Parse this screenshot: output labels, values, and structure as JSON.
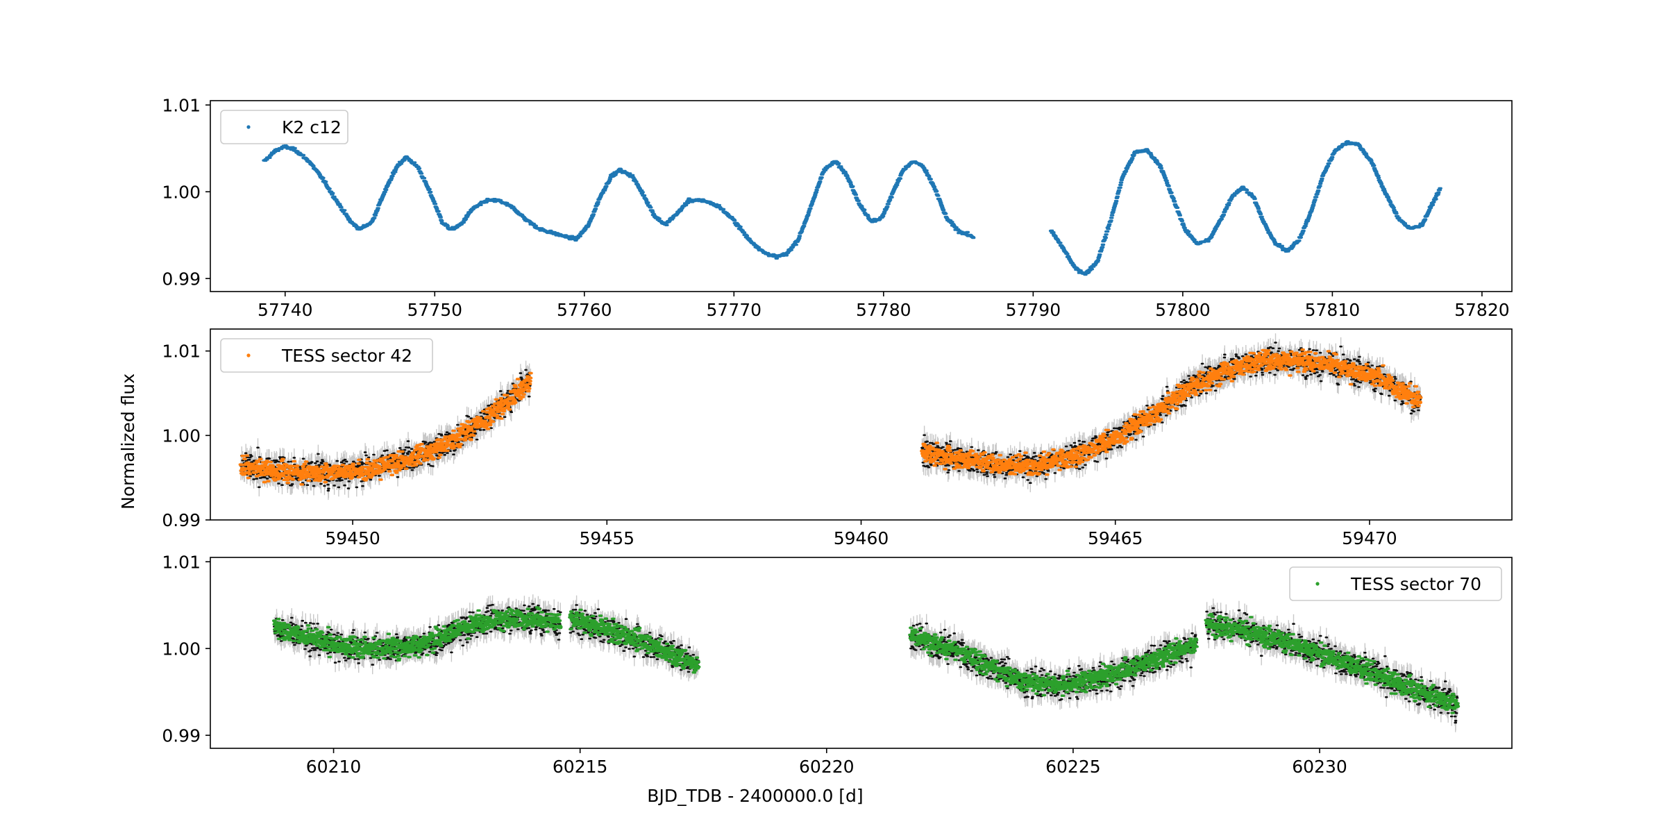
{
  "figure": {
    "xlabel": "BJD_TDB - 2400000.0 [d]",
    "ylabel": "Normalized flux"
  },
  "chart_data": [
    {
      "type": "scatter",
      "series": [
        {
          "name": "K2 c12",
          "color": "#1f77b4",
          "errorbars": false
        }
      ],
      "legend_position": "upper-left",
      "xlim": [
        57735,
        57822
      ],
      "ylim": [
        0.9885,
        1.0105
      ],
      "xticks": [
        57740,
        57750,
        57760,
        57770,
        57780,
        57790,
        57800,
        57810,
        57820
      ],
      "yticks": [
        0.99,
        1.0,
        1.01
      ],
      "ytick_labels": [
        "0.99",
        "1.00",
        "1.01"
      ],
      "segments": [
        {
          "x": [
            57738.6,
            57739.4,
            57740,
            57740.7,
            57741.6,
            57742.5,
            57743.5,
            57744.4,
            57745.0,
            57745.8,
            57746.6,
            57747.5,
            57748.1,
            57748.9,
            57749.8,
            57750.5,
            57751.1,
            57751.8,
            57752.5,
            57753.5,
            57754.3,
            57755.2,
            57756.1,
            57757.0,
            57758.0,
            57759.0,
            57759.5,
            57760.3,
            57761.0,
            57761.8,
            57762.4,
            57763.2,
            57764.0,
            57764.7,
            57765.4,
            57766.2,
            57767.0,
            57768.0,
            57769.0,
            57770.0,
            57771.0,
            57772.0,
            57772.8,
            57773.5,
            57774.3,
            57775.2,
            57776.0,
            57776.8,
            57777.6,
            57778.4,
            57779.2,
            57779.9,
            57780.6,
            57781.3,
            57782.0,
            57782.6,
            57783.4,
            57784.2,
            57785.0,
            57786.0
          ],
          "y": [
            1.0035,
            1.0048,
            1.0052,
            1.0048,
            1.0035,
            1.0015,
            0.9988,
            0.9965,
            0.9957,
            0.9965,
            0.9998,
            1.003,
            1.004,
            1.0028,
            0.9995,
            0.9965,
            0.9956,
            0.9963,
            0.998,
            0.999,
            0.999,
            0.9982,
            0.9968,
            0.9957,
            0.9952,
            0.9947,
            0.9946,
            0.9962,
            0.9992,
            1.0018,
            1.0025,
            1.0018,
            0.9995,
            0.9972,
            0.9962,
            0.9975,
            0.999,
            0.999,
            0.9983,
            0.9967,
            0.9945,
            0.993,
            0.9925,
            0.9928,
            0.9945,
            0.9985,
            1.0025,
            1.0035,
            1.0018,
            0.9985,
            0.9966,
            0.997,
            0.9998,
            1.0025,
            1.0035,
            1.003,
            1.0005,
            0.997,
            0.9955,
            0.9948
          ]
        },
        {
          "x": [
            57791.2,
            57792.0,
            57792.8,
            57793.5,
            57794.3,
            57795.2,
            57796.0,
            57796.8,
            57797.6,
            57798.5,
            57799.4,
            57800.2,
            57801.0,
            57801.8,
            57802.6,
            57803.3,
            57804.0,
            57804.7,
            57805.4,
            57806.2,
            57807.0,
            57807.8,
            57808.6,
            57809.4,
            57810.2,
            57811.0,
            57811.7,
            57812.6,
            57813.5,
            57814.4,
            57815.2,
            57816.0,
            57816.8,
            57817.2
          ],
          "y": [
            0.9955,
            0.9935,
            0.9912,
            0.9905,
            0.992,
            0.9968,
            1.0018,
            1.0045,
            1.0048,
            1.003,
            0.999,
            0.9955,
            0.994,
            0.9945,
            0.997,
            0.9995,
            1.0005,
            0.9995,
            0.9965,
            0.994,
            0.9932,
            0.9945,
            0.9978,
            1.002,
            1.0048,
            1.0057,
            1.0055,
            1.0035,
            1.0,
            0.997,
            0.9957,
            0.9962,
            0.999,
            1.0003
          ]
        }
      ]
    },
    {
      "type": "scatter",
      "series": [
        {
          "name": "TESS sector 42",
          "color": "#ff7f0e",
          "errorbars": true
        }
      ],
      "legend_position": "upper-left",
      "xlim": [
        59447.2,
        59472.8
      ],
      "ylim": [
        0.99,
        1.0126
      ],
      "xticks": [
        59450,
        59455,
        59460,
        59465,
        59470
      ],
      "yticks": [
        0.99,
        1.0,
        1.01
      ],
      "ytick_labels": [
        "0.99",
        "1.00",
        "1.01"
      ],
      "segments": [
        {
          "x": [
            59447.8,
            59448.5,
            59449.0,
            59449.5,
            59450.0,
            59450.5,
            59451.0,
            59451.5,
            59452.0,
            59452.5,
            59453.0,
            59453.5
          ],
          "y": [
            0.9963,
            0.9958,
            0.9956,
            0.9956,
            0.9958,
            0.9963,
            0.997,
            0.998,
            0.9995,
            1.0015,
            1.0038,
            1.0065
          ]
        },
        {
          "x": [
            59461.2,
            59462.0,
            59462.8,
            59463.5,
            59464.2,
            59465.0,
            59465.8,
            59466.5,
            59467.3,
            59468.0,
            59468.8,
            59469.5,
            59470.2,
            59471.0
          ],
          "y": [
            0.998,
            0.9972,
            0.9965,
            0.9965,
            0.9975,
            0.9997,
            1.0027,
            1.0058,
            1.008,
            1.009,
            1.0088,
            1.008,
            1.0068,
            1.004
          ]
        }
      ]
    },
    {
      "type": "scatter",
      "series": [
        {
          "name": "TESS sector 70",
          "color": "#2ca02c",
          "errorbars": true
        }
      ],
      "legend_position": "upper-right",
      "xlim": [
        60207.5,
        60233.9
      ],
      "ylim": [
        0.9885,
        1.0105
      ],
      "xticks": [
        60210,
        60215,
        60220,
        60225,
        60230
      ],
      "yticks": [
        0.99,
        1.0,
        1.01
      ],
      "ytick_labels": [
        "0.99",
        "1.00",
        "1.01"
      ],
      "segments": [
        {
          "x": [
            60208.8,
            60209.5,
            60210.2,
            60211.0,
            60211.8,
            60212.5,
            60213.2,
            60214.0,
            60214.6
          ],
          "y": [
            1.0025,
            1.0012,
            1.0002,
            1.0,
            1.0005,
            1.002,
            1.0033,
            1.0035,
            1.003
          ]
        },
        {
          "x": [
            60214.8,
            60215.5,
            60216.2,
            60216.8,
            60217.4
          ],
          "y": [
            1.0035,
            1.0022,
            1.001,
            0.9995,
            0.9982
          ]
        },
        {
          "x": [
            60221.7,
            60222.5,
            60223.3,
            60224.0,
            60224.8,
            60225.5,
            60226.2,
            60227.0,
            60227.5
          ],
          "y": [
            1.0015,
            1.0,
            0.998,
            0.9962,
            0.9958,
            0.9965,
            0.9978,
            0.9995,
            1.0005
          ]
        },
        {
          "x": [
            60227.7,
            60228.5,
            60229.3,
            60230.0,
            60230.8,
            60231.6,
            60232.3,
            60232.8
          ],
          "y": [
            1.003,
            1.002,
            1.0008,
            0.9995,
            0.9978,
            0.996,
            0.9945,
            0.9935
          ]
        }
      ]
    }
  ]
}
